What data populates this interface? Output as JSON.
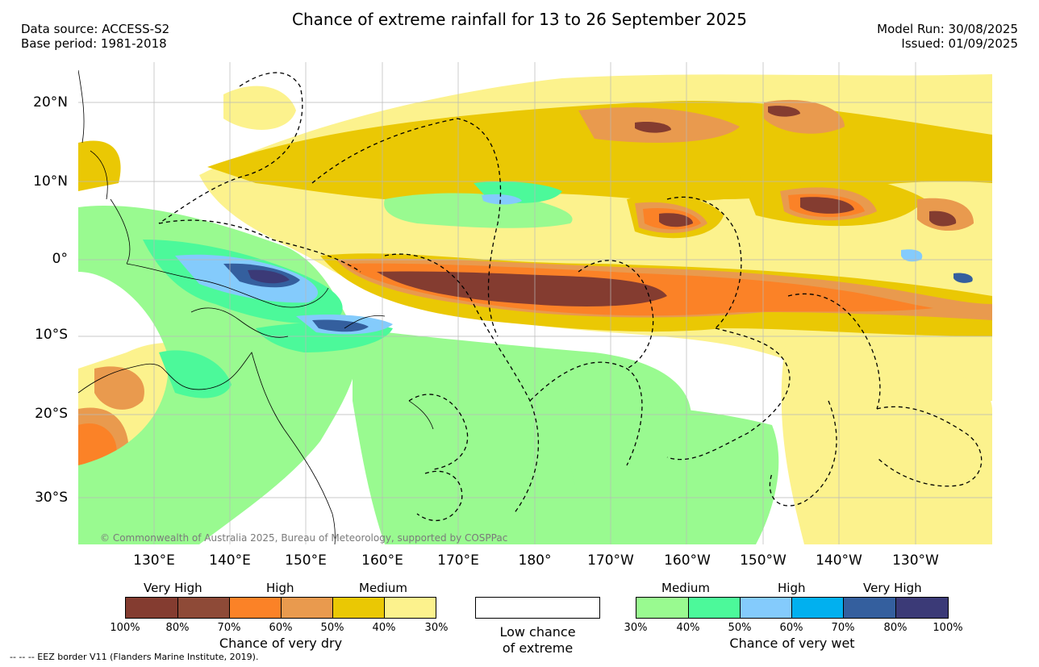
{
  "title": "Chance of extreme rainfall for 13 to 26 September 2025",
  "data_source": "Data source: ACCESS-S2",
  "base_period": "Base period: 1981-2018",
  "model_run": "Model Run: 30/08/2025",
  "issued": "Issued: 01/09/2025",
  "lat_labels": [
    "20°N",
    "10°N",
    "0°",
    "10°S",
    "20°S",
    "30°S"
  ],
  "lon_labels": [
    "130°E",
    "140°E",
    "150°E",
    "160°E",
    "170°E",
    "180°",
    "170°W",
    "160°W",
    "150°W",
    "140°W",
    "130°W"
  ],
  "credit": "© Commonwealth of Australia 2025, Bureau of Meteorology, supported by COSPPac",
  "footnote": "-- -- -- EEZ border V11 (Flanders Marine Institute, 2019).",
  "dry_legend": {
    "headers": [
      "Very High",
      "High",
      "Medium"
    ],
    "title": "Chance of very dry",
    "ticks": [
      "100%",
      "80%",
      "70%",
      "60%",
      "50%",
      "40%",
      "30%"
    ],
    "colors": [
      "#843c30",
      "#8e4a37",
      "#fb8227",
      "#e99a4e",
      "#eac804",
      "#fcf28d"
    ]
  },
  "neutral_legend": {
    "line1": "Low chance",
    "line2": "of extreme"
  },
  "wet_legend": {
    "headers": [
      "Medium",
      "High",
      "Very High"
    ],
    "title": "Chance of very wet",
    "ticks": [
      "30%",
      "40%",
      "50%",
      "60%",
      "70%",
      "80%",
      "100%"
    ],
    "colors": [
      "#99fa90",
      "#4cf99a",
      "#84cbfc",
      "#01b0ef",
      "#345f9e",
      "#3b3a77"
    ]
  }
}
